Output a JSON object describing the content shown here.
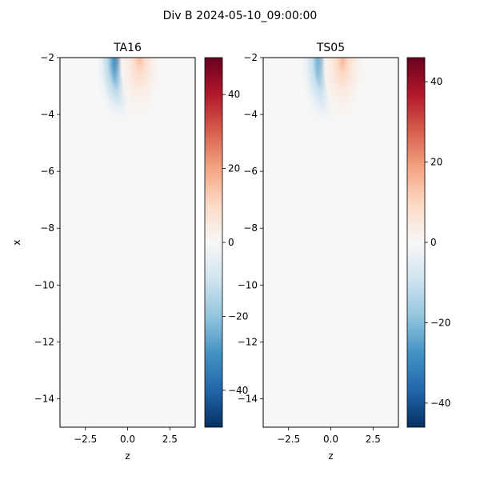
{
  "figure": {
    "title": "Div B 2024-05-10_09:00:00"
  },
  "chart_data": [
    {
      "type": "heatmap",
      "title": "TA16",
      "xlabel": "z",
      "ylabel": "x",
      "xlim": [
        -4,
        4
      ],
      "ylim": [
        -15,
        -2
      ],
      "xticks": [
        -2.5,
        0,
        2.5
      ],
      "xtick_labels": [
        "−2.5",
        "0.0",
        "2.5"
      ],
      "yticks": [
        -2,
        -4,
        -6,
        -8,
        -10,
        -12,
        -14
      ],
      "ytick_labels": [
        "−2",
        "−4",
        "−6",
        "−8",
        "−10",
        "−12",
        "−14"
      ],
      "colormap": "RdBu_r",
      "vmin": -50,
      "vmax": 50,
      "features": [
        {
          "sign": "negative",
          "z_center": -0.5,
          "x_center": -2.05,
          "peak": -50
        },
        {
          "sign": "positive",
          "z_center": 0.7,
          "x_center": -2.05,
          "peak": 15
        }
      ],
      "colorbar": {
        "ticks": [
          -40,
          -20,
          0,
          20,
          40
        ],
        "tick_labels": [
          "−40",
          "−20",
          "0",
          "20",
          "40"
        ]
      }
    },
    {
      "type": "heatmap",
      "title": "TS05",
      "xlabel": "z",
      "ylabel": "",
      "xlim": [
        -4,
        4
      ],
      "ylim": [
        -15,
        -2
      ],
      "xticks": [
        -2.5,
        0,
        2.5
      ],
      "xtick_labels": [
        "−2.5",
        "0.0",
        "2.5"
      ],
      "yticks": [
        -2,
        -4,
        -6,
        -8,
        -10,
        -12,
        -14
      ],
      "ytick_labels": [
        "−2",
        "−4",
        "−6",
        "−8",
        "−10",
        "−12",
        "−14"
      ],
      "colormap": "RdBu_r",
      "vmin": -46,
      "vmax": 46,
      "features": [
        {
          "sign": "negative",
          "z_center": -0.4,
          "x_center": -2.1,
          "peak": -40
        },
        {
          "sign": "positive",
          "z_center": 0.7,
          "x_center": -2.1,
          "peak": 15
        }
      ],
      "colorbar": {
        "ticks": [
          -40,
          -20,
          0,
          20,
          40
        ],
        "tick_labels": [
          "−40",
          "−20",
          "0",
          "20",
          "40"
        ]
      }
    }
  ]
}
